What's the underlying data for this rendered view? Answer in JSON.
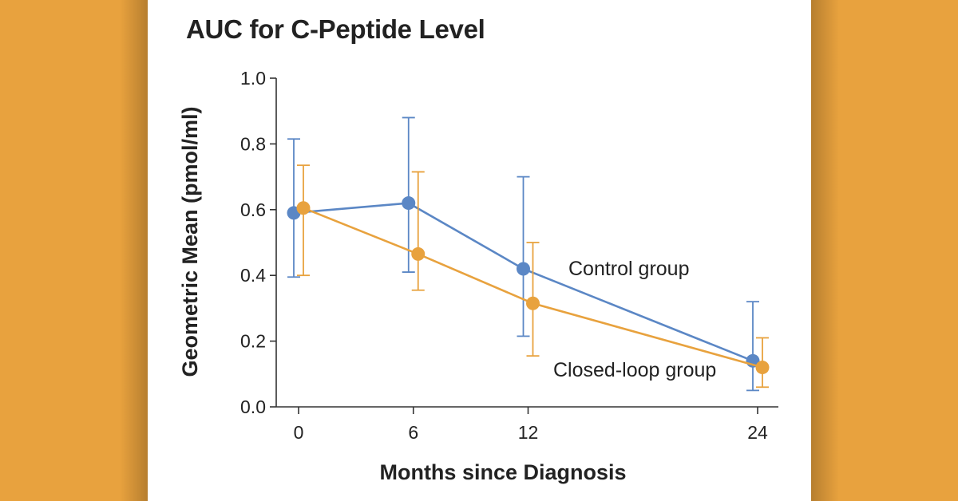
{
  "chart_data": {
    "type": "line",
    "title": "AUC for C-Peptide Level",
    "xlabel": "Months since Diagnosis",
    "ylabel": "Geometric Mean (pmol/ml)",
    "x": [
      0,
      6,
      12,
      24
    ],
    "x_ticks": [
      "0",
      "6",
      "12",
      "24"
    ],
    "y_ticks": [
      "0.0",
      "0.2",
      "0.4",
      "0.6",
      "0.8",
      "1.0"
    ],
    "ylim": [
      0,
      1.0
    ],
    "xlim": [
      0,
      24
    ],
    "series": [
      {
        "name": "Control group",
        "color": "#5B87C5",
        "values": [
          0.59,
          0.62,
          0.42,
          0.14
        ],
        "err_low": [
          0.395,
          0.41,
          0.215,
          0.05
        ],
        "err_high": [
          0.815,
          0.88,
          0.7,
          0.32
        ]
      },
      {
        "name": "Closed-loop group",
        "color": "#E8A23E",
        "values": [
          0.605,
          0.465,
          0.315,
          0.12
        ],
        "err_low": [
          0.4,
          0.355,
          0.155,
          0.06
        ],
        "err_high": [
          0.735,
          0.715,
          0.5,
          0.21
        ]
      }
    ]
  }
}
